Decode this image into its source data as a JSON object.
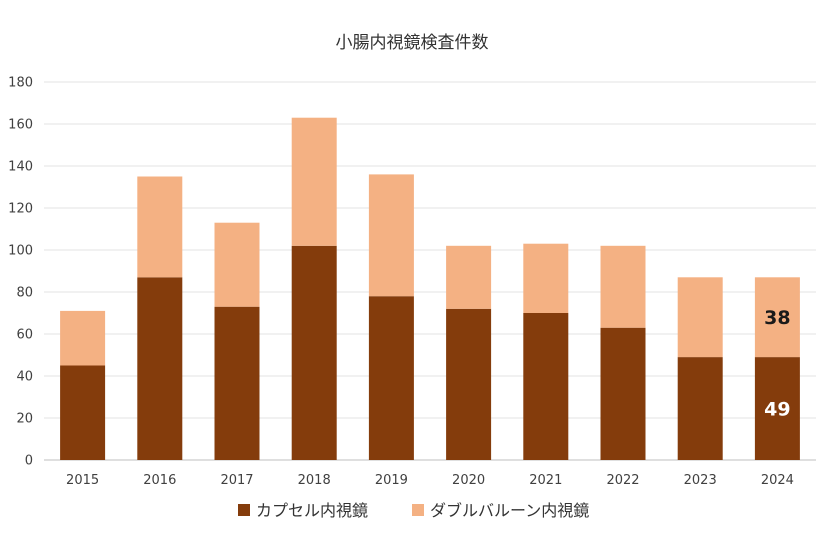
{
  "chart_data": {
    "type": "bar",
    "stacked": true,
    "title": "小腸内視鏡検査件数",
    "categories": [
      "2015",
      "2016",
      "2017",
      "2018",
      "2019",
      "2020",
      "2021",
      "2022",
      "2023",
      "2024"
    ],
    "series": [
      {
        "name": "カプセル内視鏡",
        "color": "#843C0C",
        "values": [
          45,
          87,
          73,
          102,
          78,
          72,
          70,
          63,
          49,
          49
        ]
      },
      {
        "name": "ダブルバルーン内視鏡",
        "color": "#F4B183",
        "values": [
          26,
          48,
          40,
          61,
          58,
          30,
          33,
          39,
          38,
          38
        ]
      }
    ],
    "ylim": [
      0,
      180
    ],
    "yticks": [
      "0",
      "20",
      "40",
      "60",
      "80",
      "100",
      "120",
      "140",
      "160",
      "180"
    ],
    "grid": true,
    "legend_position": "bottom",
    "data_labels": [
      {
        "category": "2024",
        "series": 0,
        "text": "49",
        "color": "#FFFFFF"
      },
      {
        "category": "2024",
        "series": 1,
        "text": "38",
        "color": "#1A1A1A"
      }
    ]
  }
}
